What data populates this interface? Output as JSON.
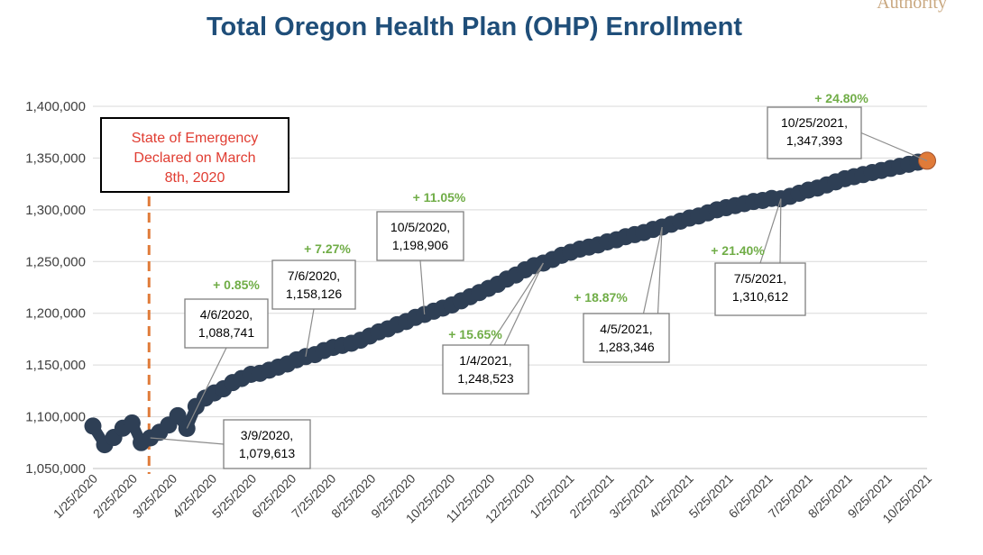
{
  "logo_text": "Authority",
  "chart_data": {
    "type": "line",
    "title": "Total Oregon Health Plan (OHP) Enrollment",
    "xlabel": "",
    "ylabel": "",
    "ylim": [
      1050000,
      1400000
    ],
    "yticks": [
      "1,050,000",
      "1,100,000",
      "1,150,000",
      "1,200,000",
      "1,250,000",
      "1,300,000",
      "1,350,000",
      "1,400,000"
    ],
    "ytick_values": [
      1050000,
      1100000,
      1150000,
      1200000,
      1250000,
      1300000,
      1350000,
      1400000
    ],
    "xlim": [
      "2020-01-25",
      "2021-10-25"
    ],
    "xticks": [
      "1/25/2020",
      "2/25/2020",
      "3/25/2020",
      "4/25/2020",
      "5/25/2020",
      "6/25/2020",
      "7/25/2020",
      "8/25/2020",
      "9/25/2020",
      "10/25/2020",
      "11/25/2020",
      "12/25/2020",
      "1/25/2021",
      "2/25/2021",
      "3/25/2021",
      "4/25/2021",
      "5/25/2021",
      "6/25/2021",
      "7/25/2021",
      "8/25/2021",
      "9/25/2021",
      "10/25/2021"
    ],
    "grid": true,
    "series": [
      {
        "color": "#2e3f55",
        "points": [
          [
            "2020-01-25",
            1091000
          ],
          [
            "2020-02-03",
            1073000
          ],
          [
            "2020-02-10",
            1080000
          ],
          [
            "2020-02-17",
            1089000
          ],
          [
            "2020-02-24",
            1094000
          ],
          [
            "2020-03-02",
            1075000
          ],
          [
            "2020-03-09",
            1079613
          ],
          [
            "2020-03-16",
            1085000
          ],
          [
            "2020-03-23",
            1092000
          ],
          [
            "2020-03-30",
            1101000
          ],
          [
            "2020-04-06",
            1088741
          ],
          [
            "2020-04-13",
            1110000
          ],
          [
            "2020-04-20",
            1118000
          ],
          [
            "2020-04-27",
            1123000
          ],
          [
            "2020-05-04",
            1127000
          ],
          [
            "2020-05-11",
            1133000
          ],
          [
            "2020-05-18",
            1137000
          ],
          [
            "2020-05-25",
            1141000
          ],
          [
            "2020-06-01",
            1142000
          ],
          [
            "2020-06-08",
            1145000
          ],
          [
            "2020-06-15",
            1148000
          ],
          [
            "2020-06-22",
            1151000
          ],
          [
            "2020-06-29",
            1155000
          ],
          [
            "2020-07-06",
            1158126
          ],
          [
            "2020-07-13",
            1160000
          ],
          [
            "2020-07-20",
            1164000
          ],
          [
            "2020-07-27",
            1167000
          ],
          [
            "2020-08-03",
            1169000
          ],
          [
            "2020-08-10",
            1171000
          ],
          [
            "2020-08-17",
            1174000
          ],
          [
            "2020-08-24",
            1178000
          ],
          [
            "2020-08-31",
            1182000
          ],
          [
            "2020-09-07",
            1185000
          ],
          [
            "2020-09-14",
            1189000
          ],
          [
            "2020-09-21",
            1192000
          ],
          [
            "2020-09-28",
            1196000
          ],
          [
            "2020-10-05",
            1198906
          ],
          [
            "2020-10-12",
            1202000
          ],
          [
            "2020-10-19",
            1205000
          ],
          [
            "2020-10-26",
            1208000
          ],
          [
            "2020-11-02",
            1212000
          ],
          [
            "2020-11-09",
            1216000
          ],
          [
            "2020-11-16",
            1220000
          ],
          [
            "2020-11-23",
            1224000
          ],
          [
            "2020-11-30",
            1228000
          ],
          [
            "2020-12-07",
            1233000
          ],
          [
            "2020-12-14",
            1237000
          ],
          [
            "2020-12-21",
            1242000
          ],
          [
            "2020-12-28",
            1246000
          ],
          [
            "2021-01-04",
            1248523
          ],
          [
            "2021-01-11",
            1252000
          ],
          [
            "2021-01-18",
            1256000
          ],
          [
            "2021-01-25",
            1259000
          ],
          [
            "2021-02-01",
            1262000
          ],
          [
            "2021-02-08",
            1264000
          ],
          [
            "2021-02-15",
            1266000
          ],
          [
            "2021-02-22",
            1269000
          ],
          [
            "2021-03-01",
            1271000
          ],
          [
            "2021-03-08",
            1274000
          ],
          [
            "2021-03-15",
            1276000
          ],
          [
            "2021-03-22",
            1278000
          ],
          [
            "2021-03-29",
            1281000
          ],
          [
            "2021-04-05",
            1283346
          ],
          [
            "2021-04-12",
            1286000
          ],
          [
            "2021-04-19",
            1289000
          ],
          [
            "2021-04-26",
            1292000
          ],
          [
            "2021-05-03",
            1294000
          ],
          [
            "2021-05-10",
            1297000
          ],
          [
            "2021-05-17",
            1300000
          ],
          [
            "2021-05-24",
            1302000
          ],
          [
            "2021-05-31",
            1304000
          ],
          [
            "2021-06-07",
            1306000
          ],
          [
            "2021-06-14",
            1308000
          ],
          [
            "2021-06-21",
            1309000
          ],
          [
            "2021-06-28",
            1311000
          ],
          [
            "2021-07-05",
            1310612
          ],
          [
            "2021-07-12",
            1313000
          ],
          [
            "2021-07-19",
            1316000
          ],
          [
            "2021-07-26",
            1319000
          ],
          [
            "2021-08-02",
            1321000
          ],
          [
            "2021-08-09",
            1324000
          ],
          [
            "2021-08-16",
            1327000
          ],
          [
            "2021-08-23",
            1330000
          ],
          [
            "2021-08-30",
            1332000
          ],
          [
            "2021-09-06",
            1334000
          ],
          [
            "2021-09-13",
            1336000
          ],
          [
            "2021-09-20",
            1338000
          ],
          [
            "2021-09-27",
            1340000
          ],
          [
            "2021-10-04",
            1342000
          ],
          [
            "2021-10-11",
            1344000
          ],
          [
            "2021-10-18",
            1346000
          ]
        ]
      }
    ],
    "highlight_point": {
      "date": "2021-10-25",
      "value": 1347393,
      "color": "#e07b39"
    },
    "callouts": [
      {
        "lines": [
          "3/9/2020,",
          "1,079,613"
        ],
        "point": [
          "2020-03-09",
          1079613
        ]
      },
      {
        "lines": [
          "4/6/2020,",
          "1,088,741"
        ],
        "point": [
          "2020-04-06",
          1088741
        ]
      },
      {
        "lines": [
          "7/6/2020,",
          "1,158,126"
        ],
        "point": [
          "2020-07-06",
          1158126
        ]
      },
      {
        "lines": [
          "10/5/2020,",
          "1,198,906"
        ],
        "point": [
          "2020-10-05",
          1198906
        ]
      },
      {
        "lines": [
          "1/4/2021,",
          "1,248,523"
        ],
        "point": [
          "2021-01-04",
          1248523
        ]
      },
      {
        "lines": [
          "4/5/2021,",
          "1,283,346"
        ],
        "point": [
          "2021-04-05",
          1283346
        ]
      },
      {
        "lines": [
          "7/5/2021,",
          "1,310,612"
        ],
        "point": [
          "2021-07-05",
          1310612
        ]
      },
      {
        "lines": [
          "10/25/2021,",
          "1,347,393"
        ],
        "point": [
          "2021-10-25",
          1347393
        ]
      }
    ],
    "percent_labels": [
      "+ 0.85%",
      "+ 7.27%",
      "+ 11.05%",
      "+ 15.65%",
      "+ 18.87%",
      "+ 21.40%",
      "+ 24.80%"
    ],
    "percent_color": "#70ad47",
    "event_line": {
      "date": "2020-03-08",
      "color": "#e07b39",
      "label_lines": [
        "State of Emergency",
        "Declared on March",
        "8th, 2020"
      ],
      "label_color": "#e03c31"
    }
  }
}
